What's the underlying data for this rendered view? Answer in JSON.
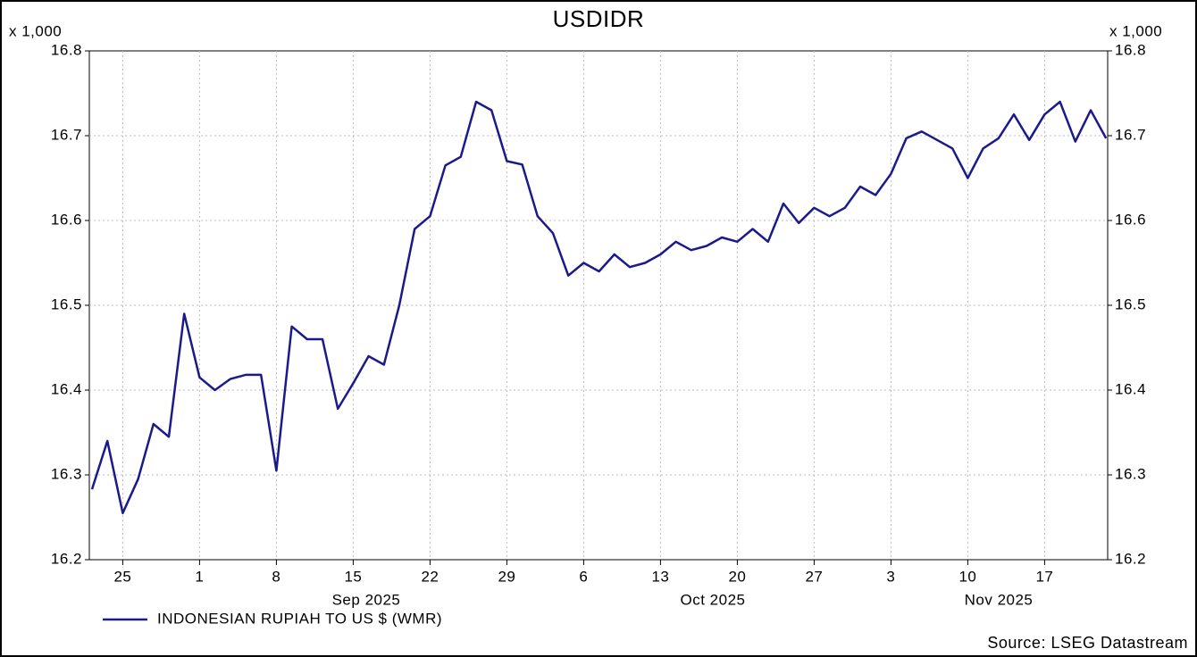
{
  "chart_data": {
    "type": "line",
    "title": "USDIDR",
    "y_unit": "x 1,000",
    "categories": [
      null,
      null,
      "25",
      null,
      null,
      null,
      null,
      "1",
      null,
      null,
      null,
      null,
      "8",
      null,
      null,
      null,
      null,
      "15",
      null,
      null,
      null,
      null,
      "22",
      null,
      null,
      null,
      null,
      "29",
      null,
      null,
      null,
      null,
      "6",
      null,
      null,
      null,
      null,
      "13",
      null,
      null,
      null,
      null,
      "20",
      null,
      null,
      null,
      null,
      "27",
      null,
      null,
      null,
      null,
      "3",
      null,
      null,
      null,
      null,
      "10",
      null,
      null,
      null,
      null,
      "17",
      null,
      null,
      null,
      null
    ],
    "month_labels": [
      "Sep 2025",
      "Oct 2025",
      "Nov 2025"
    ],
    "series": [
      {
        "name": "INDONESIAN RUPIAH TO US $ (WMR)",
        "color": "#1a1a8c",
        "values": [
          16.283,
          16.34,
          16.255,
          16.295,
          16.36,
          16.345,
          16.49,
          16.415,
          16.4,
          16.413,
          16.418,
          16.418,
          16.305,
          16.475,
          16.46,
          16.46,
          16.378,
          16.408,
          16.44,
          16.43,
          16.5,
          16.59,
          16.605,
          16.665,
          16.675,
          16.74,
          16.73,
          16.67,
          16.666,
          16.605,
          16.585,
          16.535,
          16.55,
          16.54,
          16.56,
          16.545,
          16.55,
          16.56,
          16.575,
          16.565,
          16.57,
          16.58,
          16.575,
          16.59,
          16.575,
          16.62,
          16.597,
          16.615,
          16.605,
          16.615,
          16.64,
          16.63,
          16.655,
          16.697,
          16.705,
          16.695,
          16.685,
          16.65,
          16.685,
          16.697,
          16.725,
          16.695,
          16.725,
          16.74,
          16.693,
          16.73,
          16.697
        ]
      }
    ],
    "ylim": [
      16.2,
      16.8
    ],
    "yticks": [
      16.2,
      16.3,
      16.4,
      16.5,
      16.6,
      16.7,
      16.8
    ],
    "grid": true,
    "source": "Source: LSEG Datastream"
  }
}
